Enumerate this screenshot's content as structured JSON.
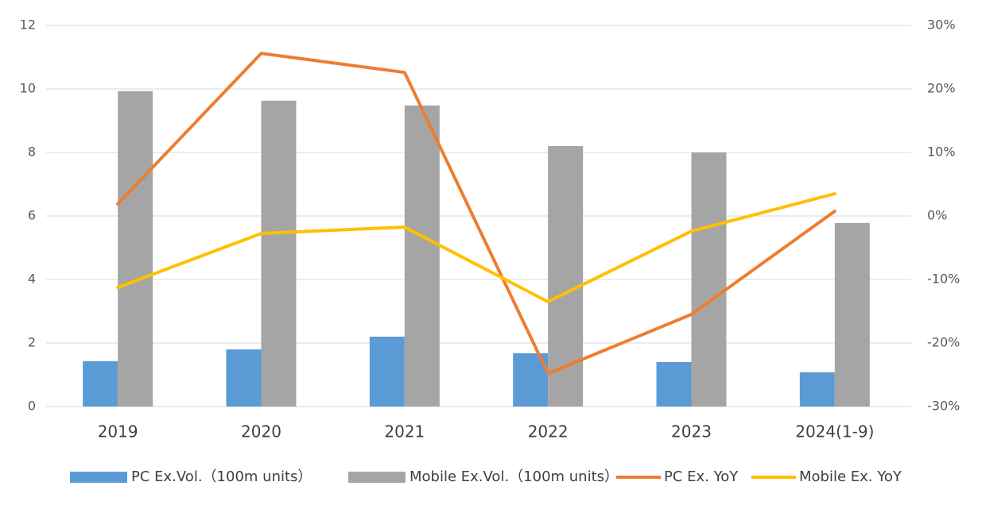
{
  "chart_data": {
    "type": "bar-line",
    "categories": [
      "2019",
      "2020",
      "2021",
      "2022",
      "2023",
      "2024(1-9)"
    ],
    "series": [
      {
        "name": "PC Ex.Vol.（100m units）",
        "type": "bar",
        "color": "#5b9bd5",
        "values": [
          1.43,
          1.8,
          2.2,
          1.68,
          1.4,
          1.08
        ]
      },
      {
        "name": "Mobile Ex.Vol.（100m units）",
        "type": "bar",
        "color": "#a5a5a5",
        "values": [
          9.93,
          9.63,
          9.48,
          8.2,
          8.0,
          5.78
        ]
      },
      {
        "name": "PC Ex. YoY",
        "type": "line",
        "axis": "y2",
        "color": "#ed7d31",
        "values": [
          1.9,
          25.6,
          22.6,
          -24.8,
          -15.5,
          0.75
        ]
      },
      {
        "name": "Mobile Ex. YoY",
        "type": "line",
        "axis": "y2",
        "color": "#ffc000",
        "values": [
          -11.25,
          -2.75,
          -1.75,
          -13.5,
          -2.4,
          3.5
        ]
      }
    ],
    "ylim": [
      0,
      12
    ],
    "yticks": [
      0,
      2,
      4,
      6,
      8,
      10,
      12
    ],
    "y2lim": [
      -30,
      30
    ],
    "y2ticks": [
      {
        "value": -30,
        "label": "-30%"
      },
      {
        "value": -20,
        "label": "-20%"
      },
      {
        "value": -10,
        "label": "-10%"
      },
      {
        "value": 0,
        "label": "0%"
      },
      {
        "value": 10,
        "label": "10%"
      },
      {
        "value": 20,
        "label": "20%"
      },
      {
        "value": 30,
        "label": "30%"
      }
    ],
    "grid": true,
    "legend": "bottom"
  }
}
